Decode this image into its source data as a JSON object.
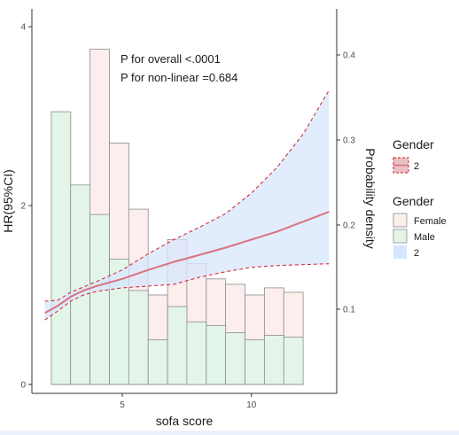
{
  "chart_data": {
    "type": "bar",
    "xlabel": "sofa score",
    "ylabel_left": "HR(95%CI)",
    "ylabel_right": "Probability density",
    "x_ticks": [
      5,
      10
    ],
    "y_left_ticks": [
      0,
      2,
      4
    ],
    "y_right_ticks": [
      "0.1",
      "0.2",
      "0.3",
      "0.4"
    ],
    "xlim": [
      1.5,
      13.3
    ],
    "ylim_left": [
      -0.1,
      4.2
    ],
    "annotations": [
      "P for overall <.0001",
      "P for non-linear =0.684"
    ],
    "histogram": {
      "bin_starts": [
        2.25,
        3.0,
        3.75,
        4.5,
        5.25,
        6.0,
        6.75,
        7.5,
        8.25,
        9.0,
        9.75,
        10.5,
        11.25,
        12.0
      ],
      "bin_width": 0.75,
      "series": [
        {
          "name": "Female",
          "values": [
            1.35,
            1.1,
            3.75,
            2.7,
            1.96,
            1.0,
            1.62,
            1.35,
            1.18,
            1.12,
            1.0,
            1.08,
            1.03,
            0.0
          ]
        },
        {
          "name": "Male",
          "values": [
            3.05,
            2.23,
            1.9,
            1.4,
            1.05,
            0.5,
            0.87,
            0.7,
            0.66,
            0.58,
            0.5,
            0.55,
            0.53,
            0.0
          ]
        }
      ]
    },
    "spline": {
      "name": "2",
      "x": [
        2.0,
        2.5,
        3.0,
        3.5,
        4.0,
        5.0,
        6.0,
        7.0,
        8.0,
        9.0,
        10.0,
        11.0,
        12.0,
        13.0
      ],
      "hr": [
        0.8,
        0.88,
        0.98,
        1.05,
        1.1,
        1.18,
        1.28,
        1.37,
        1.45,
        1.53,
        1.62,
        1.71,
        1.82,
        1.93
      ],
      "lower": [
        0.72,
        0.82,
        0.93,
        1.0,
        1.04,
        1.08,
        1.1,
        1.12,
        1.2,
        1.26,
        1.31,
        1.33,
        1.34,
        1.35
      ],
      "upper": [
        0.93,
        0.94,
        1.03,
        1.09,
        1.15,
        1.28,
        1.46,
        1.62,
        1.76,
        1.91,
        2.14,
        2.43,
        2.8,
        3.29
      ]
    },
    "legends": [
      {
        "title": "Gender",
        "entries": [
          "2"
        ]
      },
      {
        "title": "Gender",
        "entries": [
          "Female",
          "Male",
          "2"
        ]
      }
    ],
    "colors": {
      "female_fill": "#fdeeee",
      "male_fill": "#e3f5e8",
      "bar_border": "#8c8c8c",
      "ci_fill": "#d7e6fc",
      "ci_border": "#d11f2e",
      "line": "#d9737e"
    }
  }
}
